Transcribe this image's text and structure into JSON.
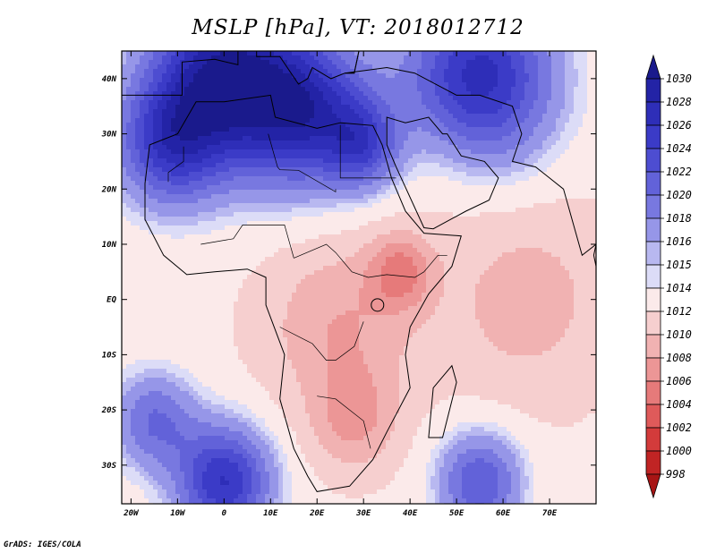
{
  "title": "MSLP [hPa], VT: 2018012712",
  "footer": "GrADS: IGES/COLA",
  "map": {
    "lon_range": [
      -22,
      80
    ],
    "lat_range": [
      -37,
      45
    ],
    "lat_labels": [
      {
        "lat": 40,
        "text": "40N"
      },
      {
        "lat": 30,
        "text": "30N"
      },
      {
        "lat": 20,
        "text": "20N"
      },
      {
        "lat": 10,
        "text": "10N"
      },
      {
        "lat": 0,
        "text": "EQ"
      },
      {
        "lat": -10,
        "text": "10S"
      },
      {
        "lat": -20,
        "text": "20S"
      },
      {
        "lat": -30,
        "text": "30S"
      }
    ],
    "lon_labels": [
      {
        "lon": -20,
        "text": "20W"
      },
      {
        "lon": -10,
        "text": "10W"
      },
      {
        "lon": 0,
        "text": "0"
      },
      {
        "lon": 10,
        "text": "10E"
      },
      {
        "lon": 20,
        "text": "20E"
      },
      {
        "lon": 30,
        "text": "30E"
      },
      {
        "lon": 40,
        "text": "40E"
      },
      {
        "lon": 50,
        "text": "50E"
      },
      {
        "lon": 60,
        "text": "60E"
      },
      {
        "lon": 70,
        "text": "70E"
      }
    ],
    "pressure_fields": [
      {
        "lon": 0,
        "lat": 40,
        "hPa": 1030,
        "spread": 14
      },
      {
        "lon": 18,
        "lat": 34,
        "hPa": 1026,
        "spread": 12
      },
      {
        "lon": -12,
        "lat": 28,
        "hPa": 1023,
        "spread": 10
      },
      {
        "lon": 30,
        "lat": 28,
        "hPa": 1021,
        "spread": 7
      },
      {
        "lon": 55,
        "lat": 40,
        "hPa": 1027,
        "spread": 14
      },
      {
        "lon": 0,
        "lat": -33,
        "hPa": 1026,
        "spread": 9
      },
      {
        "lon": -15,
        "lat": -22,
        "hPa": 1020,
        "spread": 8
      },
      {
        "lon": 55,
        "lat": -33,
        "hPa": 1022,
        "spread": 8
      },
      {
        "lon": 25,
        "lat": -5,
        "hPa": 1008,
        "spread": 14
      },
      {
        "lon": 38,
        "lat": 5,
        "hPa": 1006,
        "spread": 6
      },
      {
        "lon": 28,
        "lat": -22,
        "hPa": 1008,
        "spread": 8
      },
      {
        "lon": 65,
        "lat": 0,
        "hPa": 1009,
        "spread": 16
      },
      {
        "lon": 48,
        "lat": 25,
        "hPa": 1011,
        "spread": 10
      }
    ]
  },
  "colorbar": {
    "levels": [
      "1030",
      "1028",
      "1026",
      "1024",
      "1022",
      "1020",
      "1018",
      "1016",
      "1015",
      "1014",
      "1012",
      "1010",
      "1008",
      "1006",
      "1004",
      "1002",
      "1000",
      "998"
    ],
    "colors": [
      "#1a1a8c",
      "#2323a6",
      "#2e2eb8",
      "#3b3bc7",
      "#4d4dd1",
      "#6262d9",
      "#7878e0",
      "#9696e8",
      "#b8b8f0",
      "#dcdcf7",
      "#fbeaea",
      "#f6cfcf",
      "#f1b2b2",
      "#ec9696",
      "#e67a7a",
      "#df5a5a",
      "#d33b3b",
      "#c02424",
      "#a81515"
    ]
  }
}
